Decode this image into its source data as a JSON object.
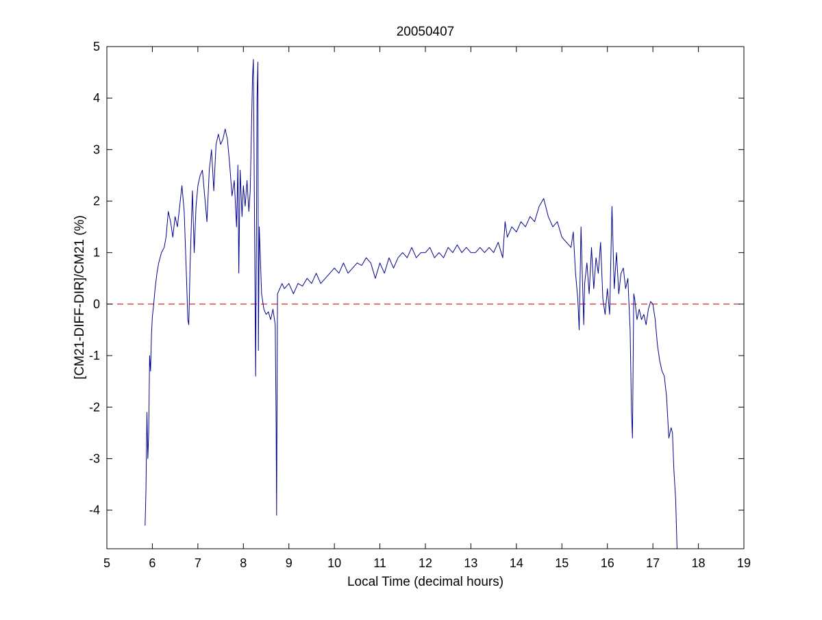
{
  "chart_data": {
    "type": "line",
    "title": "20050407",
    "xlabel": "Local Time (decimal hours)",
    "ylabel": "[CM21-DIFF-DIR]/CM21 (%)",
    "xlim": [
      5,
      19
    ],
    "ylim": [
      -4.75,
      5
    ],
    "xticks": [
      5,
      6,
      7,
      8,
      9,
      10,
      11,
      12,
      13,
      14,
      15,
      16,
      17,
      18,
      19
    ],
    "yticks": [
      -4,
      -3,
      -2,
      -1,
      0,
      1,
      2,
      3,
      4,
      5
    ],
    "grid": false,
    "colors": {
      "series": "#00008b",
      "reference": "#d62728"
    },
    "reference_line": {
      "y": 0,
      "style": "dashed"
    },
    "series": [
      {
        "values": [
          [
            5.84,
            -4.3
          ],
          [
            5.86,
            -3.6
          ],
          [
            5.88,
            -2.1
          ],
          [
            5.9,
            -3.0
          ],
          [
            5.92,
            -2.5
          ],
          [
            5.94,
            -1.0
          ],
          [
            5.96,
            -1.3
          ],
          [
            5.98,
            -0.6
          ],
          [
            6.0,
            -0.25
          ],
          [
            6.03,
            0.0
          ],
          [
            6.06,
            0.3
          ],
          [
            6.1,
            0.6
          ],
          [
            6.14,
            0.8
          ],
          [
            6.2,
            1.0
          ],
          [
            6.26,
            1.1
          ],
          [
            6.3,
            1.3
          ],
          [
            6.35,
            1.8
          ],
          [
            6.4,
            1.6
          ],
          [
            6.45,
            1.3
          ],
          [
            6.5,
            1.7
          ],
          [
            6.55,
            1.5
          ],
          [
            6.6,
            1.9
          ],
          [
            6.65,
            2.3
          ],
          [
            6.7,
            1.8
          ],
          [
            6.75,
            0.5
          ],
          [
            6.78,
            -0.3
          ],
          [
            6.8,
            -0.4
          ],
          [
            6.83,
            0.8
          ],
          [
            6.88,
            2.2
          ],
          [
            6.92,
            1.0
          ],
          [
            6.96,
            1.9
          ],
          [
            7.0,
            2.3
          ],
          [
            7.05,
            2.5
          ],
          [
            7.1,
            2.6
          ],
          [
            7.15,
            2.1
          ],
          [
            7.2,
            1.6
          ],
          [
            7.25,
            2.6
          ],
          [
            7.3,
            3.0
          ],
          [
            7.35,
            2.2
          ],
          [
            7.4,
            3.1
          ],
          [
            7.45,
            3.3
          ],
          [
            7.5,
            3.1
          ],
          [
            7.55,
            3.2
          ],
          [
            7.6,
            3.4
          ],
          [
            7.65,
            3.2
          ],
          [
            7.7,
            2.7
          ],
          [
            7.75,
            2.1
          ],
          [
            7.8,
            2.4
          ],
          [
            7.85,
            1.5
          ],
          [
            7.88,
            2.7
          ],
          [
            7.9,
            0.6
          ],
          [
            7.93,
            2.6
          ],
          [
            7.97,
            1.7
          ],
          [
            8.0,
            2.3
          ],
          [
            8.04,
            1.9
          ],
          [
            8.08,
            2.4
          ],
          [
            8.12,
            1.8
          ],
          [
            8.15,
            2.2
          ],
          [
            8.2,
            4.4
          ],
          [
            8.22,
            4.75
          ],
          [
            8.25,
            1.0
          ],
          [
            8.27,
            -1.4
          ],
          [
            8.29,
            1.8
          ],
          [
            8.3,
            4.0
          ],
          [
            8.32,
            4.7
          ],
          [
            8.33,
            -0.9
          ],
          [
            8.35,
            1.5
          ],
          [
            8.4,
            0.2
          ],
          [
            8.45,
            -0.1
          ],
          [
            8.5,
            -0.2
          ],
          [
            8.55,
            -0.15
          ],
          [
            8.6,
            -0.3
          ],
          [
            8.65,
            -0.1
          ],
          [
            8.7,
            -0.4
          ],
          [
            8.72,
            -2.3
          ],
          [
            8.73,
            -4.1
          ],
          [
            8.75,
            0.2
          ],
          [
            8.8,
            0.3
          ],
          [
            8.85,
            0.4
          ],
          [
            8.9,
            0.3
          ],
          [
            9.0,
            0.4
          ],
          [
            9.1,
            0.2
          ],
          [
            9.2,
            0.4
          ],
          [
            9.3,
            0.35
          ],
          [
            9.4,
            0.5
          ],
          [
            9.5,
            0.4
          ],
          [
            9.6,
            0.6
          ],
          [
            9.7,
            0.4
          ],
          [
            9.8,
            0.5
          ],
          [
            9.9,
            0.6
          ],
          [
            10.0,
            0.7
          ],
          [
            10.1,
            0.6
          ],
          [
            10.2,
            0.8
          ],
          [
            10.3,
            0.6
          ],
          [
            10.4,
            0.7
          ],
          [
            10.5,
            0.8
          ],
          [
            10.6,
            0.75
          ],
          [
            10.7,
            0.9
          ],
          [
            10.8,
            0.8
          ],
          [
            10.9,
            0.5
          ],
          [
            11.0,
            0.8
          ],
          [
            11.1,
            0.6
          ],
          [
            11.2,
            0.9
          ],
          [
            11.3,
            0.7
          ],
          [
            11.4,
            0.9
          ],
          [
            11.5,
            1.0
          ],
          [
            11.6,
            0.9
          ],
          [
            11.7,
            1.1
          ],
          [
            11.8,
            0.9
          ],
          [
            11.9,
            1.0
          ],
          [
            12.0,
            1.0
          ],
          [
            12.1,
            1.1
          ],
          [
            12.2,
            0.9
          ],
          [
            12.3,
            1.0
          ],
          [
            12.4,
            0.9
          ],
          [
            12.5,
            1.1
          ],
          [
            12.6,
            1.0
          ],
          [
            12.7,
            1.15
          ],
          [
            12.8,
            1.0
          ],
          [
            12.9,
            1.1
          ],
          [
            13.0,
            1.0
          ],
          [
            13.1,
            1.0
          ],
          [
            13.2,
            1.1
          ],
          [
            13.3,
            1.0
          ],
          [
            13.4,
            1.1
          ],
          [
            13.5,
            1.0
          ],
          [
            13.6,
            1.2
          ],
          [
            13.7,
            0.9
          ],
          [
            13.75,
            1.6
          ],
          [
            13.8,
            1.3
          ],
          [
            13.9,
            1.5
          ],
          [
            14.0,
            1.4
          ],
          [
            14.1,
            1.6
          ],
          [
            14.2,
            1.5
          ],
          [
            14.3,
            1.7
          ],
          [
            14.4,
            1.6
          ],
          [
            14.5,
            1.9
          ],
          [
            14.6,
            2.05
          ],
          [
            14.7,
            1.7
          ],
          [
            14.8,
            1.5
          ],
          [
            14.9,
            1.6
          ],
          [
            15.0,
            1.3
          ],
          [
            15.1,
            1.2
          ],
          [
            15.2,
            1.1
          ],
          [
            15.25,
            1.4
          ],
          [
            15.3,
            0.6
          ],
          [
            15.35,
            0.1
          ],
          [
            15.38,
            -0.5
          ],
          [
            15.42,
            1.5
          ],
          [
            15.45,
            0.5
          ],
          [
            15.48,
            -0.4
          ],
          [
            15.5,
            0.4
          ],
          [
            15.55,
            0.8
          ],
          [
            15.6,
            0.2
          ],
          [
            15.65,
            1.1
          ],
          [
            15.7,
            0.3
          ],
          [
            15.75,
            0.9
          ],
          [
            15.8,
            0.6
          ],
          [
            15.85,
            1.2
          ],
          [
            15.9,
            0.1
          ],
          [
            15.95,
            -0.2
          ],
          [
            16.0,
            0.3
          ],
          [
            16.05,
            -0.2
          ],
          [
            16.1,
            1.9
          ],
          [
            16.15,
            0.3
          ],
          [
            16.2,
            1.0
          ],
          [
            16.25,
            0.2
          ],
          [
            16.3,
            0.6
          ],
          [
            16.35,
            0.7
          ],
          [
            16.4,
            0.3
          ],
          [
            16.45,
            0.5
          ],
          [
            16.5,
            -0.5
          ],
          [
            16.53,
            -2.1
          ],
          [
            16.55,
            -2.6
          ],
          [
            16.58,
            0.2
          ],
          [
            16.6,
            0.1
          ],
          [
            16.65,
            -0.3
          ],
          [
            16.7,
            -0.1
          ],
          [
            16.75,
            -0.3
          ],
          [
            16.8,
            -0.2
          ],
          [
            16.85,
            -0.4
          ],
          [
            16.9,
            -0.1
          ],
          [
            16.95,
            0.05
          ],
          [
            17.0,
            0.0
          ],
          [
            17.05,
            -0.3
          ],
          [
            17.1,
            -0.8
          ],
          [
            17.15,
            -1.1
          ],
          [
            17.2,
            -1.3
          ],
          [
            17.25,
            -1.4
          ],
          [
            17.3,
            -1.8
          ],
          [
            17.35,
            -2.6
          ],
          [
            17.4,
            -2.4
          ],
          [
            17.43,
            -2.5
          ],
          [
            17.46,
            -3.2
          ],
          [
            17.5,
            -3.8
          ],
          [
            17.53,
            -4.75
          ]
        ]
      }
    ]
  }
}
